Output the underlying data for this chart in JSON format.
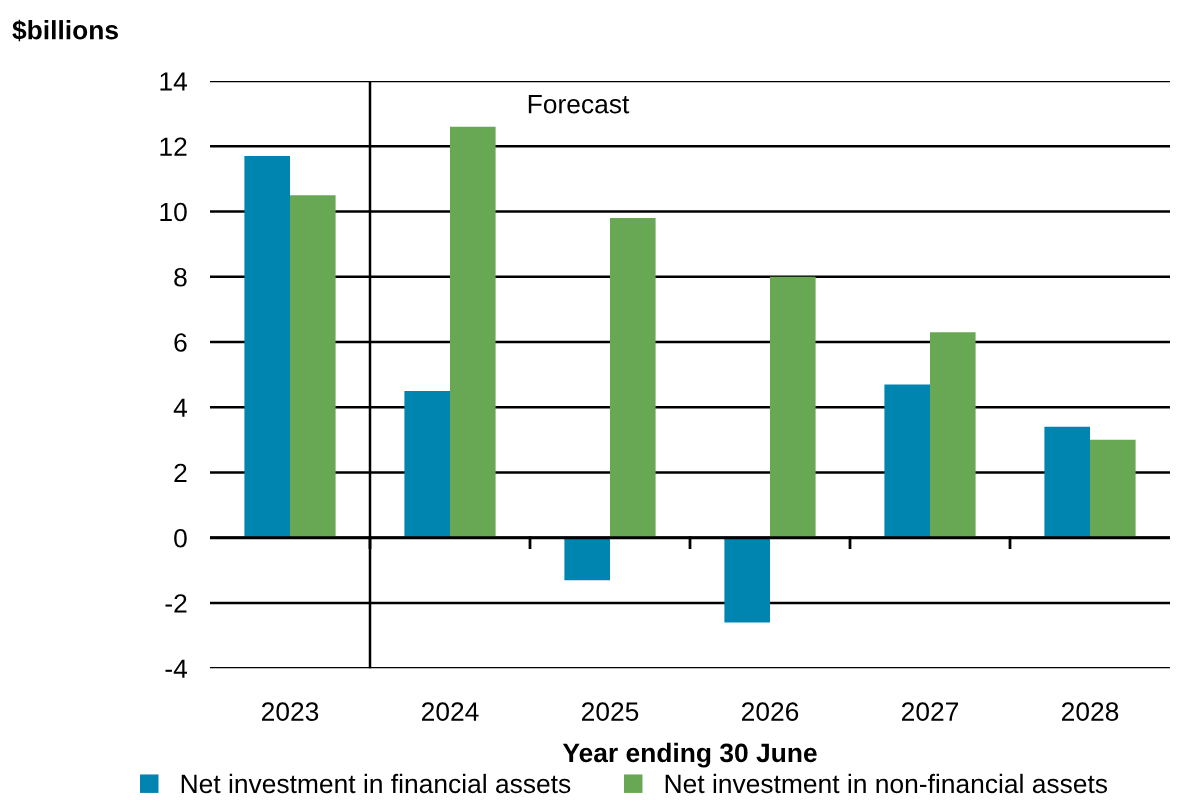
{
  "chart_data": {
    "type": "bar",
    "ylabel": "$billions",
    "xlabel": "Year ending 30 June",
    "categories": [
      "2023",
      "2024",
      "2025",
      "2026",
      "2027",
      "2028"
    ],
    "series": [
      {
        "name": "Net investment in financial assets",
        "color": "#0084b0",
        "values": [
          11.7,
          4.5,
          -1.3,
          -2.6,
          4.7,
          3.4
        ]
      },
      {
        "name": "Net investment in non-financial assets",
        "color": "#68a855",
        "values": [
          10.5,
          12.6,
          9.8,
          8.0,
          6.3,
          3.0
        ]
      }
    ],
    "ylim": [
      -4,
      14
    ],
    "yticks": [
      -4,
      -2,
      0,
      2,
      4,
      6,
      8,
      10,
      12,
      14
    ],
    "grid": "y",
    "legend": "bottom",
    "annotations": [
      "Forecast"
    ]
  }
}
